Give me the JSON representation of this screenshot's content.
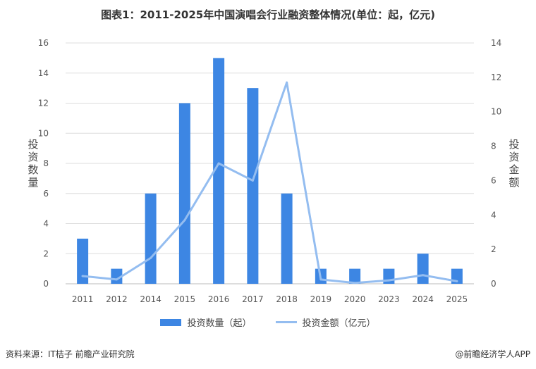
{
  "title": "图表1：2011-2025年中国演唱会行业融资整体情况(单位：起，亿元)",
  "source": "资料来源：IT桔子 前瞻产业研究院",
  "credit": "@前瞻经济学人APP",
  "colors": {
    "bar": "#3d86e3",
    "line": "#94bdf0",
    "grid": "#dddddd",
    "axis": "#bbbbbb",
    "text": "#555555"
  },
  "chart_data": {
    "type": "bar",
    "categories": [
      "2011",
      "2012",
      "2014",
      "2015",
      "2016",
      "2017",
      "2018",
      "2019",
      "2020",
      "2023",
      "2024",
      "2025"
    ],
    "series": [
      {
        "name": "投资数量（起）",
        "type": "bar",
        "axis": "left",
        "values": [
          3,
          1,
          6,
          12,
          15,
          13,
          6,
          1,
          1,
          1,
          2,
          1
        ]
      },
      {
        "name": "投资金额（亿元）",
        "type": "line",
        "axis": "right",
        "values": [
          0.45,
          0.25,
          1.5,
          3.7,
          7.0,
          6.0,
          11.7,
          0.25,
          0.05,
          0.2,
          0.5,
          0.15
        ]
      }
    ],
    "ylabel": "投资数量",
    "ylabel2": "投资金额",
    "ylim": [
      0,
      16
    ],
    "y2lim": [
      0,
      14
    ],
    "yticks": [
      0,
      2,
      4,
      6,
      8,
      10,
      12,
      14,
      16
    ],
    "y2ticks": [
      0,
      2,
      4,
      6,
      8,
      10,
      12,
      14
    ],
    "grid": true,
    "legend": "bottom"
  }
}
